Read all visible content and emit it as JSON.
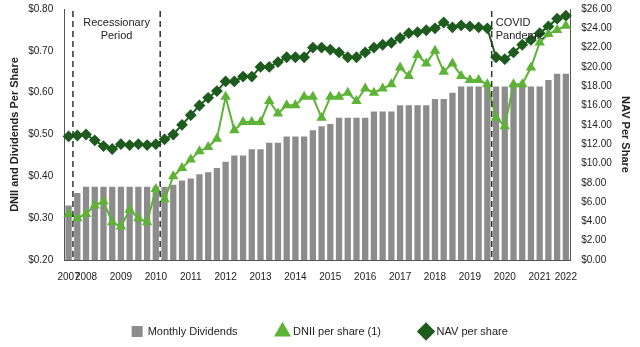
{
  "chart_data": {
    "type": "bar",
    "categories": [
      "2007",
      null,
      "2008",
      null,
      null,
      null,
      "2009",
      null,
      null,
      null,
      "2010",
      null,
      null,
      null,
      "2011",
      null,
      null,
      null,
      "2012",
      null,
      null,
      null,
      "2013",
      null,
      null,
      null,
      "2014",
      null,
      null,
      null,
      "2015",
      null,
      null,
      null,
      "2016",
      null,
      null,
      null,
      "2017",
      null,
      null,
      null,
      "2018",
      null,
      null,
      null,
      "2019",
      null,
      null,
      null,
      "2020",
      null,
      null,
      null,
      "2021",
      null,
      null,
      "2022"
    ],
    "series": [
      {
        "name": "Monthly Dividends",
        "type": "bar",
        "color": "#8c8c8c",
        "values": [
          0.33,
          0.36,
          0.375,
          0.375,
          0.375,
          0.375,
          0.375,
          0.375,
          0.375,
          0.375,
          0.375,
          0.375,
          0.38,
          0.39,
          0.395,
          0.405,
          0.41,
          0.42,
          0.435,
          0.45,
          0.45,
          0.465,
          0.465,
          0.48,
          0.48,
          0.495,
          0.495,
          0.495,
          0.51,
          0.52,
          0.525,
          0.54,
          0.54,
          0.54,
          0.54,
          0.555,
          0.555,
          0.555,
          0.57,
          0.57,
          0.57,
          0.57,
          0.585,
          0.585,
          0.6,
          0.615,
          0.615,
          0.615,
          0.615,
          0.615,
          0.615,
          0.615,
          0.615,
          0.615,
          0.615,
          0.63,
          0.645,
          0.645
        ]
      },
      {
        "name": "DNII per share (1)",
        "type": "line",
        "color": "#5cb335",
        "marker": "triangle",
        "line_style": "solid",
        "values": [
          0.31,
          0.3,
          0.31,
          0.33,
          0.34,
          0.29,
          0.28,
          0.32,
          0.3,
          0.29,
          0.37,
          0.345,
          0.4,
          0.42,
          0.44,
          0.46,
          0.47,
          0.49,
          0.59,
          0.51,
          0.53,
          0.53,
          0.53,
          0.58,
          0.55,
          0.57,
          0.57,
          0.59,
          0.59,
          0.54,
          0.59,
          0.59,
          0.6,
          0.58,
          0.61,
          0.6,
          0.61,
          0.62,
          0.66,
          0.64,
          0.69,
          0.67,
          0.7,
          0.65,
          0.67,
          0.64,
          0.63,
          0.63,
          0.62,
          0.54,
          0.52,
          0.62,
          0.62,
          0.66,
          0.72,
          0.74,
          0.75,
          0.76
        ]
      },
      {
        "name": "NAV per share",
        "type": "line",
        "axis": "y2",
        "color": "#1d5c1d",
        "marker": "diamond",
        "line_style": "solid",
        "values": [
          12.8,
          12.9,
          13.0,
          12.4,
          11.8,
          11.5,
          12.0,
          11.9,
          12.0,
          11.9,
          12.0,
          12.5,
          13.0,
          14.0,
          15.0,
          16.0,
          16.8,
          17.5,
          18.5,
          18.5,
          19.0,
          19.0,
          20.0,
          20.0,
          20.5,
          21.0,
          21.0,
          21.0,
          22.0,
          22.0,
          21.8,
          21.5,
          21.0,
          21.0,
          21.5,
          22.0,
          22.3,
          22.5,
          23.0,
          23.5,
          23.6,
          23.8,
          24.0,
          24.6,
          24.1,
          24.3,
          24.2,
          24.1,
          24.0,
          21.0,
          20.8,
          21.5,
          22.3,
          22.8,
          23.5,
          24.2,
          25.0,
          25.3
        ]
      }
    ],
    "y_label": "DNII and Dividends Per Share",
    "y2_label": "NAV Per Share",
    "ylim": [
      0.2,
      0.8
    ],
    "yticks": [
      {
        "value": 0.2,
        "label": "$0.20"
      },
      {
        "value": 0.3,
        "label": "$0.30"
      },
      {
        "value": 0.4,
        "label": "$0.40"
      },
      {
        "value": 0.5,
        "label": "$0.50"
      },
      {
        "value": 0.6,
        "label": "$0.60"
      },
      {
        "value": 0.7,
        "label": "$0.70"
      },
      {
        "value": 0.8,
        "label": "$0.80"
      }
    ],
    "y2lim": [
      0,
      26
    ],
    "y2ticks": [
      {
        "value": 0,
        "label": "$0.00"
      },
      {
        "value": 2,
        "label": "$2.00"
      },
      {
        "value": 4,
        "label": "$4.00"
      },
      {
        "value": 6,
        "label": "$6.00"
      },
      {
        "value": 8,
        "label": "$8.00"
      },
      {
        "value": 10,
        "label": "$10.00"
      },
      {
        "value": 12,
        "label": "$12.00"
      },
      {
        "value": 14,
        "label": "$14.00"
      },
      {
        "value": 16,
        "label": "$16.00"
      },
      {
        "value": 18,
        "label": "$18.00"
      },
      {
        "value": 20,
        "label": "$20.00"
      },
      {
        "value": 22,
        "label": "$22.00"
      },
      {
        "value": 24,
        "label": "$24.00"
      },
      {
        "value": 26,
        "label": "$26.00"
      }
    ],
    "annotations": [
      {
        "text": "Recessionary Period",
        "x": [
          0.5,
          10.5
        ]
      },
      {
        "text": "COVID Pandemic",
        "x": [
          48.5
        ]
      }
    ],
    "grid": false,
    "legend": "bottom"
  }
}
